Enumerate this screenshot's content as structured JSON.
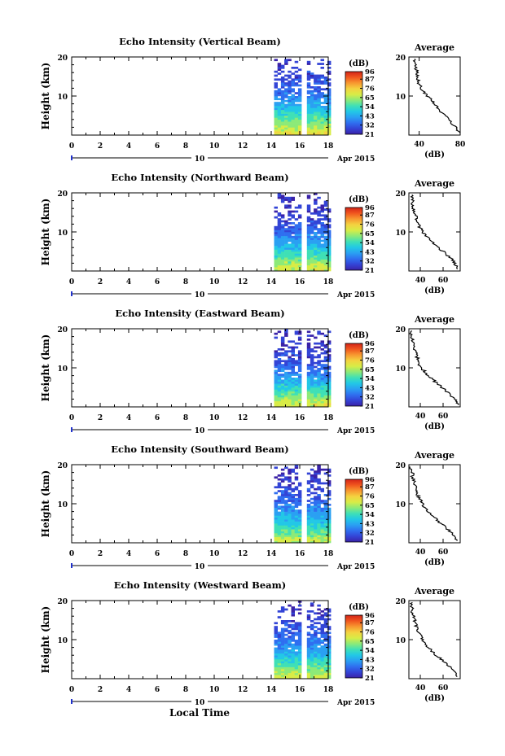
{
  "figure": {
    "xlabel": "Local Time",
    "date_label": "Apr 2015",
    "timeline_tick": "10",
    "x_ticks": [
      "0",
      "2",
      "4",
      "6",
      "8",
      "10",
      "12",
      "14",
      "16",
      "18"
    ],
    "y_ticks": [
      "20",
      "10"
    ],
    "ylabel": "Height (km)",
    "colorbar_unit": "(dB)",
    "colorbar_ticks": [
      "96",
      "87",
      "76",
      "65",
      "54",
      "43",
      "32",
      "21"
    ],
    "profile_title": "Average",
    "profile_xlabel": "(dB)"
  },
  "colors": {
    "colormap": [
      "#3a22a8",
      "#3344d6",
      "#2f6ff0",
      "#2aa0f2",
      "#22c8e6",
      "#3fe0b6",
      "#8cea78",
      "#d8ec46",
      "#f4d240",
      "#f79830",
      "#f0561e",
      "#d42418"
    ],
    "profile_line": "#000000"
  },
  "chart_data": [
    {
      "type": "heatmap",
      "title": "Echo Intensity (Vertical Beam)",
      "xlabel": "Local Time",
      "ylabel": "Height (km)",
      "xlim": [
        0,
        18
      ],
      "ylim": [
        0,
        20
      ],
      "colorbar": {
        "label": "(dB)",
        "min": 21,
        "max": 96,
        "ticks": [
          96,
          87,
          76,
          65,
          54,
          43,
          32,
          21
        ]
      },
      "data_segments": [
        [
          14.2,
          16.0
        ],
        [
          16.5,
          18.0
        ]
      ],
      "intensity_by_height": {
        "height": [
          1,
          3,
          5,
          7,
          9,
          11,
          13,
          15,
          17,
          19
        ],
        "value": [
          70,
          62,
          55,
          48,
          42,
          36,
          33,
          31,
          30,
          29
        ]
      },
      "profile": {
        "title": "Average",
        "xlabel": "(dB)",
        "xlim": [
          30,
          80
        ],
        "xticks": [
          40,
          80
        ],
        "ylim": [
          0,
          20
        ],
        "yticks": [
          10,
          20
        ],
        "height": [
          0.5,
          1,
          2,
          3,
          4,
          5,
          6,
          7,
          8,
          9,
          10,
          11,
          12,
          13,
          14,
          15,
          16,
          17,
          18,
          19,
          19.5
        ],
        "value": [
          79,
          78,
          76,
          72,
          68,
          66,
          60,
          58,
          55,
          52,
          48,
          45,
          42,
          40,
          39,
          38,
          38,
          37,
          36,
          35,
          35
        ]
      }
    },
    {
      "type": "heatmap",
      "title": "Echo Intensity (Northward Beam)",
      "xlabel": "Local Time",
      "ylabel": "Height (km)",
      "xlim": [
        0,
        18
      ],
      "ylim": [
        0,
        20
      ],
      "colorbar": {
        "label": "(dB)",
        "min": 21,
        "max": 96,
        "ticks": [
          96,
          87,
          76,
          65,
          54,
          43,
          32,
          21
        ]
      },
      "data_segments": [
        [
          14.2,
          16.0
        ],
        [
          16.5,
          18.0
        ]
      ],
      "intensity_by_height": {
        "height": [
          1,
          3,
          5,
          7,
          9,
          11,
          13,
          15,
          17,
          19
        ],
        "value": [
          68,
          60,
          52,
          45,
          39,
          34,
          31,
          29,
          28,
          27
        ]
      },
      "profile": {
        "title": "Average",
        "xlabel": "(dB)",
        "xlim": [
          30,
          75
        ],
        "xticks": [
          40,
          60
        ],
        "ylim": [
          0,
          20
        ],
        "yticks": [
          10,
          20
        ],
        "height": [
          0.5,
          1,
          2,
          3,
          4,
          5,
          6,
          7,
          8,
          9,
          10,
          11,
          12,
          13,
          14,
          15,
          16,
          17,
          18,
          19,
          19.5
        ],
        "value": [
          73,
          72,
          70,
          68,
          64,
          60,
          56,
          52,
          48,
          45,
          42,
          40,
          38,
          37,
          36,
          35,
          34,
          33,
          33,
          32,
          32
        ]
      }
    },
    {
      "type": "heatmap",
      "title": "Echo Intensity (Eastward Beam)",
      "xlabel": "Local Time",
      "ylabel": "Height (km)",
      "xlim": [
        0,
        18
      ],
      "ylim": [
        0,
        20
      ],
      "colorbar": {
        "label": "(dB)",
        "min": 21,
        "max": 96,
        "ticks": [
          96,
          87,
          76,
          65,
          54,
          43,
          32,
          21
        ]
      },
      "data_segments": [
        [
          14.2,
          16.0
        ],
        [
          16.5,
          18.0
        ]
      ],
      "intensity_by_height": {
        "height": [
          1,
          3,
          5,
          7,
          9,
          11,
          13,
          15,
          17,
          19
        ],
        "value": [
          68,
          60,
          52,
          45,
          39,
          34,
          31,
          29,
          28,
          27
        ]
      },
      "profile": {
        "title": "Average",
        "xlabel": "(dB)",
        "xlim": [
          30,
          75
        ],
        "xticks": [
          40,
          60
        ],
        "ylim": [
          0,
          20
        ],
        "yticks": [
          10,
          20
        ],
        "height": [
          0.5,
          1,
          2,
          3,
          4,
          5,
          6,
          7,
          8,
          9,
          10,
          11,
          12,
          13,
          14,
          15,
          16,
          17,
          18,
          19,
          19.5
        ],
        "value": [
          73,
          72,
          70,
          67,
          63,
          59,
          55,
          51,
          47,
          44,
          41,
          39,
          38,
          37,
          36,
          35,
          34,
          33,
          33,
          32,
          32
        ]
      }
    },
    {
      "type": "heatmap",
      "title": "Echo Intensity (Southward Beam)",
      "xlabel": "Local Time",
      "ylabel": "Height (km)",
      "xlim": [
        0,
        18
      ],
      "ylim": [
        0,
        20
      ],
      "colorbar": {
        "label": "(dB)",
        "min": 21,
        "max": 96,
        "ticks": [
          96,
          87,
          76,
          65,
          54,
          43,
          32,
          21
        ]
      },
      "data_segments": [
        [
          14.2,
          16.0
        ],
        [
          16.5,
          18.0
        ]
      ],
      "intensity_by_height": {
        "height": [
          1,
          3,
          5,
          7,
          9,
          11,
          13,
          15,
          17,
          19
        ],
        "value": [
          66,
          58,
          51,
          45,
          40,
          35,
          32,
          30,
          28,
          27
        ]
      },
      "profile": {
        "title": "Average",
        "xlabel": "(dB)",
        "xlim": [
          30,
          75
        ],
        "xticks": [
          40,
          60
        ],
        "ylim": [
          0,
          20
        ],
        "yticks": [
          10,
          20
        ],
        "height": [
          0.5,
          1,
          2,
          3,
          4,
          5,
          6,
          7,
          8,
          9,
          10,
          11,
          12,
          13,
          14,
          15,
          16,
          17,
          18,
          19,
          19.5
        ],
        "value": [
          72,
          71,
          69,
          66,
          62,
          58,
          54,
          50,
          46,
          44,
          42,
          40,
          38,
          37,
          36,
          35,
          34,
          33,
          33,
          32,
          32
        ]
      }
    },
    {
      "type": "heatmap",
      "title": "Echo Intensity (Westward Beam)",
      "xlabel": "Local Time",
      "ylabel": "Height (km)",
      "xlim": [
        0,
        18
      ],
      "ylim": [
        0,
        20
      ],
      "colorbar": {
        "label": "(dB)",
        "min": 21,
        "max": 96,
        "ticks": [
          96,
          87,
          76,
          65,
          54,
          43,
          32,
          21
        ]
      },
      "data_segments": [
        [
          14.2,
          16.0
        ],
        [
          16.5,
          18.0
        ]
      ],
      "intensity_by_height": {
        "height": [
          1,
          3,
          5,
          7,
          9,
          11,
          13,
          15,
          17,
          19
        ],
        "value": [
          67,
          59,
          52,
          45,
          40,
          35,
          32,
          30,
          28,
          27
        ]
      },
      "profile": {
        "title": "Average",
        "xlabel": "(dB)",
        "xlim": [
          30,
          75
        ],
        "xticks": [
          40,
          60
        ],
        "ylim": [
          0,
          20
        ],
        "yticks": [
          10,
          20
        ],
        "height": [
          0.5,
          1,
          2,
          3,
          4,
          5,
          6,
          7,
          8,
          9,
          10,
          11,
          12,
          13,
          14,
          15,
          16,
          17,
          18,
          19,
          19.5
        ],
        "value": [
          72,
          71,
          69,
          66,
          62,
          58,
          54,
          50,
          47,
          44,
          42,
          40,
          38,
          37,
          36,
          35,
          34,
          33,
          33,
          32,
          32
        ]
      }
    }
  ]
}
